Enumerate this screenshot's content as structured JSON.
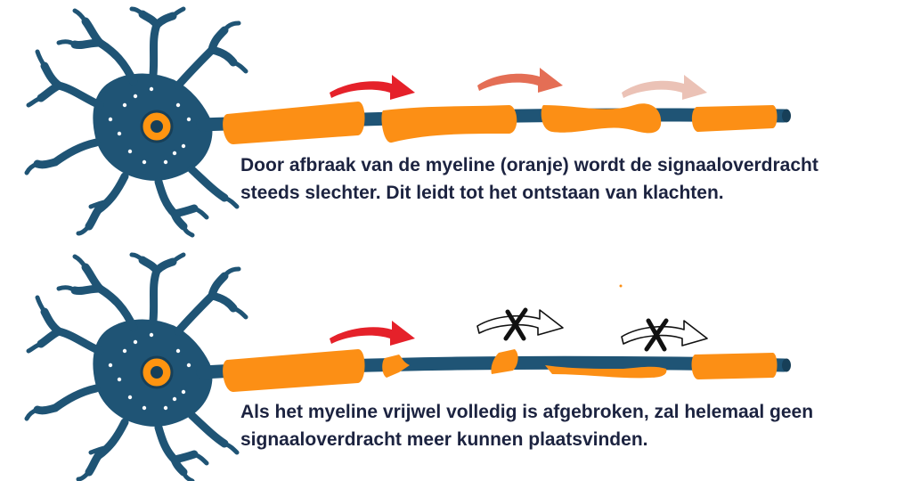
{
  "colors": {
    "axon": "#1f5475",
    "axon_dark": "#173f58",
    "myelin": "#fc8f15",
    "nucleus": "#ff9410",
    "arrow_active": "#e5212a",
    "arrow_fading_1": "#e46e55",
    "arrow_fading_2": "#ebc2b6",
    "blocked_mark": "#111111",
    "text": "#1c2340"
  },
  "panels": [
    {
      "id": "partial-demyelination",
      "caption_lines": [
        "Door afbraak van de myeline (oranje) wordt de signaaloverdracht",
        "steeds slechter. Dit leidt tot het ontstaan van klachten."
      ],
      "signal_arrows": [
        "active",
        "fading-1",
        "fading-2"
      ]
    },
    {
      "id": "complete-demyelination",
      "caption_lines": [
        "Als het myeline vrijwel volledig is afgebroken, zal helemaal geen",
        "signaaloverdracht meer kunnen plaatsvinden."
      ],
      "signal_arrows": [
        "active",
        "blocked",
        "blocked"
      ]
    }
  ]
}
